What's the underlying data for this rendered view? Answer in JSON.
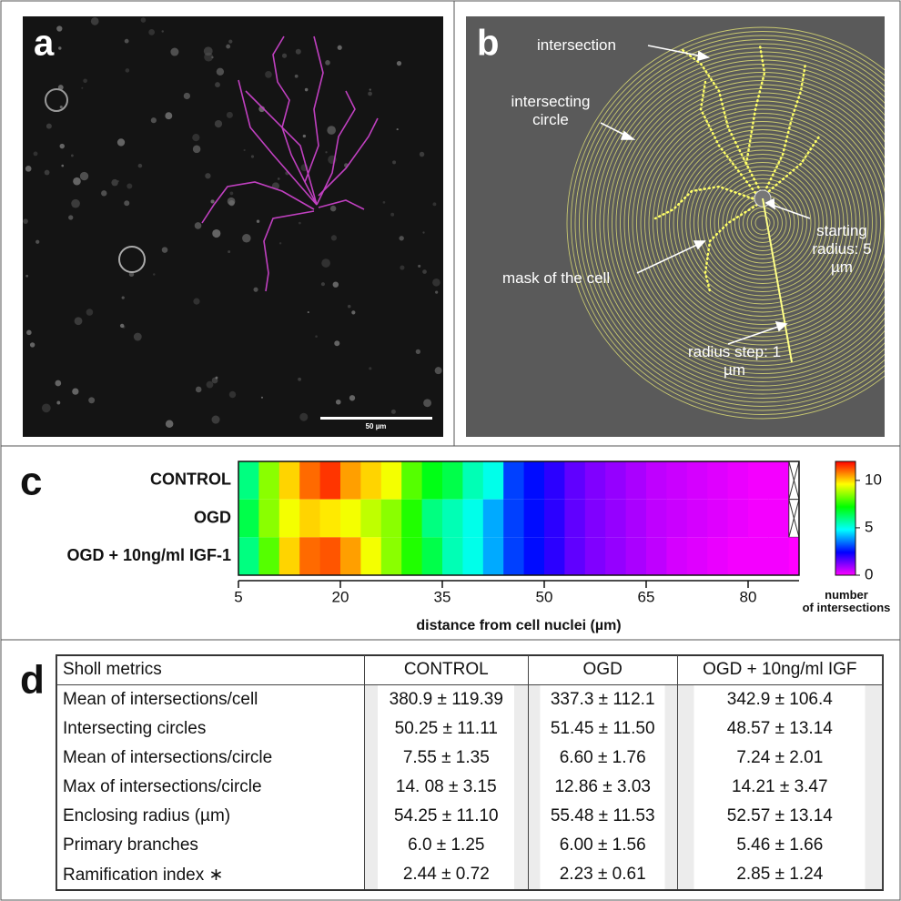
{
  "panel_labels": [
    "a",
    "b",
    "c",
    "d"
  ],
  "panel_a": {
    "scale_bar_label": "50 µm"
  },
  "panel_b": {
    "annotations": [
      "intersection",
      "intersecting circle",
      "starting radius: 5 µm",
      "mask of the cell",
      "radius step: 1 µm"
    ]
  },
  "chart_data": {
    "type": "heatmap",
    "categories": [
      "CONTROL",
      "OGD",
      "OGD + 10ng/ml IGF-1"
    ],
    "bins": [
      5,
      8,
      11,
      14,
      17,
      20,
      23,
      26,
      29,
      32,
      35,
      38,
      41,
      44,
      47,
      50,
      53,
      56,
      59,
      62,
      65,
      68,
      71,
      74,
      77,
      80,
      83,
      86,
      87.5
    ],
    "values": [
      [
        6,
        8.5,
        10,
        11,
        11.5,
        10.5,
        10,
        9.5,
        8,
        7,
        6.5,
        5.5,
        5,
        3,
        2.5,
        2,
        1.5,
        1.2,
        1,
        0.8,
        0.6,
        0.5,
        0.4,
        0.3,
        0.2,
        0.1,
        0.1,
        null
      ],
      [
        6.5,
        8.5,
        9.5,
        10,
        9.8,
        9.5,
        9,
        8.5,
        7.5,
        6,
        5.5,
        5,
        4,
        3,
        2.5,
        2,
        1.5,
        1.2,
        1,
        0.8,
        0.6,
        0.5,
        0.4,
        0.3,
        0.2,
        0.1,
        0.1,
        null
      ],
      [
        6,
        8,
        10,
        11,
        11.2,
        10.5,
        9.5,
        8.5,
        7.5,
        6.5,
        5.5,
        5,
        4,
        3,
        2.5,
        2,
        1.5,
        1.2,
        1,
        0.8,
        0.6,
        0.4,
        0.3,
        0.2,
        0.1,
        0.1,
        0.1,
        0
      ]
    ],
    "xlabel": "distance from cell nuclei (µm)",
    "xlim": [
      5,
      87.5
    ],
    "xticks": [
      5,
      20,
      35,
      50,
      65,
      80
    ],
    "colorbar": {
      "label": "number of intersections",
      "lim": [
        0,
        12
      ],
      "ticks": [
        0,
        5,
        10
      ],
      "colors": [
        "#ff00ff",
        "#0000ff",
        "#00ffff",
        "#00ff00",
        "#ffff00",
        "#ff0000"
      ]
    }
  },
  "table": {
    "header": [
      "Sholl metrics",
      "CONTROL",
      "OGD",
      "OGD + 10ng/ml IGF"
    ],
    "rows": [
      [
        "Mean of intersections/cell",
        "380.9 ± 119.39",
        "337.3 ± 112.1",
        "342.9 ± 106.4"
      ],
      [
        "Intersecting circles",
        "50.25 ± 11.11",
        "51.45 ± 11.50",
        "48.57 ± 13.14"
      ],
      [
        "Mean of intersections/circle",
        "7.55 ± 1.35",
        "6.60 ± 1.76",
        "7.24 ± 2.01"
      ],
      [
        "Max of intersections/circle",
        "14. 08 ± 3.15",
        "12.86 ± 3.03",
        "14.21 ± 3.47"
      ],
      [
        "Enclosing radius (µm)",
        "54.25 ± 11.10",
        "55.48 ± 11.53",
        "52.57 ± 13.14"
      ],
      [
        "Primary branches",
        "6.0 ± 1.25",
        "6.00 ± 1.56",
        "5.46 ± 1.66"
      ],
      [
        "Ramification index ∗",
        "2.44 ± 0.72",
        "2.23 ± 0.61",
        "2.85 ± 1.24"
      ]
    ]
  }
}
